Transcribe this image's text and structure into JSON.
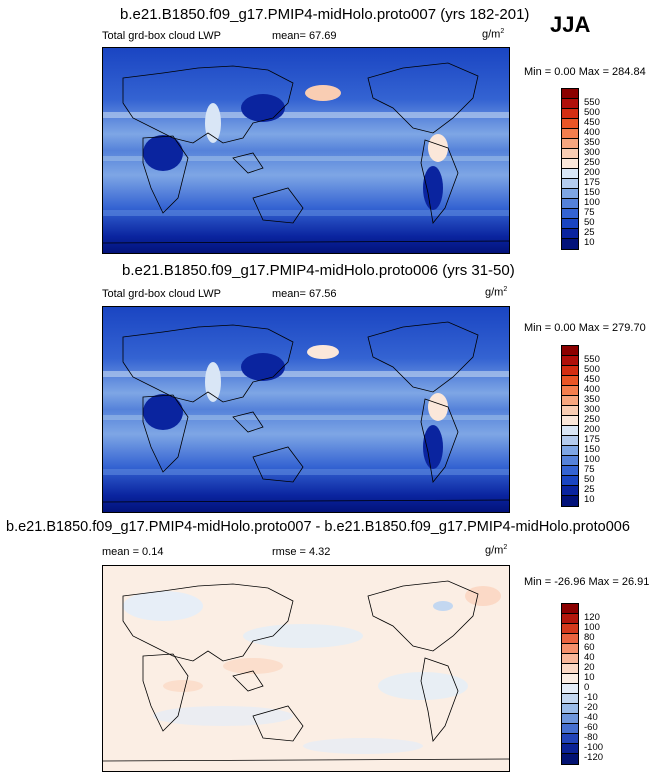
{
  "season": "JJA",
  "panels": [
    {
      "title": "b.e21.B1850.f09_g17.PMIP4-midHolo.proto007 (yrs 182-201)",
      "left_label": "Total grd-box cloud LWP",
      "stat_text": "mean=  67.69",
      "stat2_text": "",
      "units": "g/m",
      "units_sup": "2",
      "minmax": "Min =   0.00 Max = 284.84",
      "levels": [
        "550",
        "500",
        "450",
        "400",
        "350",
        "300",
        "250",
        "200",
        "175",
        "150",
        "100",
        "75",
        "50",
        "25",
        "10"
      ]
    },
    {
      "title": "b.e21.B1850.f09_g17.PMIP4-midHolo.proto006 (yrs 31-50)",
      "left_label": "Total grd-box cloud LWP",
      "stat_text": "mean=  67.56",
      "stat2_text": "",
      "units": "g/m",
      "units_sup": "2",
      "minmax": "Min =   0.00 Max = 279.70",
      "levels": [
        "550",
        "500",
        "450",
        "400",
        "350",
        "300",
        "250",
        "200",
        "175",
        "150",
        "100",
        "75",
        "50",
        "25",
        "10"
      ]
    },
    {
      "title": "b.e21.B1850.f09_g17.PMIP4-midHolo.proto007 - b.e21.B1850.f09_g17.PMIP4-midHolo.proto006",
      "left_label": "mean =   0.14",
      "stat_text": "rmse =   4.32",
      "stat2_text": "",
      "units": "g/m",
      "units_sup": "2",
      "minmax": "Min = -26.96 Max = 26.91",
      "levels": [
        "120",
        "100",
        "80",
        "60",
        "40",
        "20",
        "10",
        "0",
        "-10",
        "-20",
        "-40",
        "-60",
        "-80",
        "-100",
        "-120"
      ]
    }
  ],
  "colors": {
    "abs_scale": [
      "#8b0000",
      "#b00f0a",
      "#d42d12",
      "#ea5526",
      "#f47e4e",
      "#f7a67f",
      "#f9cdb3",
      "#fbe7da",
      "#d9e6f6",
      "#b3cbee",
      "#7ea6e5",
      "#5582da",
      "#3463d2",
      "#1a45c2",
      "#0a249f",
      "#02127a"
    ],
    "diff_scale": [
      "#8b0000",
      "#b3170c",
      "#d43a1d",
      "#ea6440",
      "#f4906c",
      "#f8b79a",
      "#fbd9c6",
      "#fbeee4",
      "#e4edf8",
      "#c3d7f0",
      "#9bbce8",
      "#6f97dc",
      "#4670d0",
      "#2244b8",
      "#0b2294",
      "#021272"
    ]
  },
  "chart_data": [
    {
      "type": "heatmap",
      "title": "b.e21.B1850.f09_g17.PMIP4-midHolo.proto007 (yrs 182-201)",
      "variable": "Total grd-box cloud LWP",
      "units": "g/m2",
      "mean": 67.69,
      "min": 0.0,
      "max": 284.84,
      "contour_levels": [
        10,
        25,
        50,
        75,
        100,
        150,
        175,
        200,
        250,
        300,
        350,
        400,
        450,
        500,
        550
      ]
    },
    {
      "type": "heatmap",
      "title": "b.e21.B1850.f09_g17.PMIP4-midHolo.proto006 (yrs 31-50)",
      "variable": "Total grd-box cloud LWP",
      "units": "g/m2",
      "mean": 67.56,
      "min": 0.0,
      "max": 279.7,
      "contour_levels": [
        10,
        25,
        50,
        75,
        100,
        150,
        175,
        200,
        250,
        300,
        350,
        400,
        450,
        500,
        550
      ]
    },
    {
      "type": "heatmap",
      "title": "b.e21.B1850.f09_g17.PMIP4-midHolo.proto007 - b.e21.B1850.f09_g17.PMIP4-midHolo.proto006",
      "units": "g/m2",
      "mean": 0.14,
      "rmse": 4.32,
      "min": -26.96,
      "max": 26.91,
      "contour_levels": [
        -120,
        -100,
        -80,
        -60,
        -40,
        -20,
        -10,
        0,
        10,
        20,
        40,
        60,
        80,
        100,
        120
      ]
    }
  ]
}
